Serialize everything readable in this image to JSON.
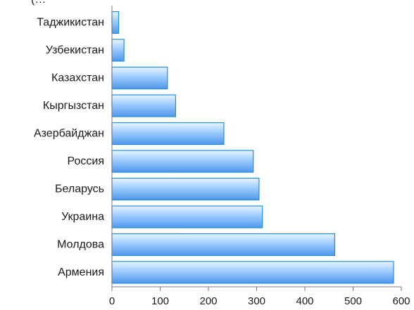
{
  "cropped_title": "(…",
  "chart_data": {
    "type": "bar",
    "orientation": "horizontal",
    "title": "",
    "xlabel": "",
    "ylabel": "",
    "categories": [
      "Таджикистан",
      "Узбекистан",
      "Казахстан",
      "Кыргызстан",
      "Азербайджан",
      "Россия",
      "Беларусь",
      "Украина",
      "Молдова",
      "Армения"
    ],
    "values": [
      14,
      25,
      115,
      132,
      232,
      293,
      305,
      312,
      462,
      584
    ],
    "xlim": [
      0,
      600
    ],
    "xticks": [
      0,
      100,
      200,
      300,
      400,
      500,
      600
    ],
    "grid": false,
    "legend": "none",
    "colors": {
      "bar_light": "#e9f4ff",
      "bar_mid": "#9ccbff",
      "bar_dark": "#4f97ea",
      "bar_stroke": "#1f8fe6",
      "axis": "#7a7a7a"
    }
  }
}
